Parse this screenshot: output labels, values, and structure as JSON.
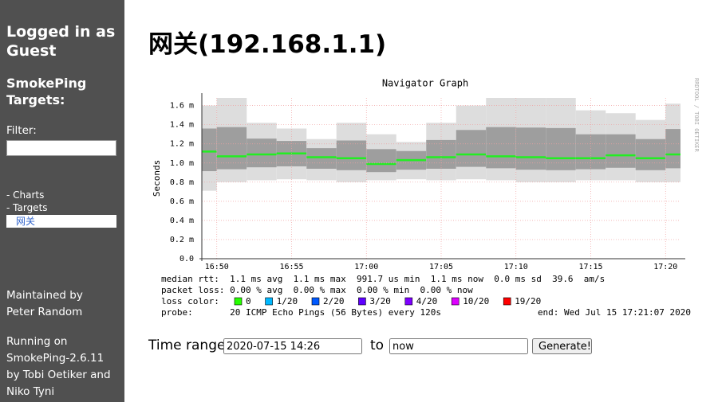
{
  "sidebar": {
    "login": "Logged in as Guest",
    "targets_title": "SmokePing Targets:",
    "filter_label": "Filter:",
    "filter_value": "",
    "menu": [
      "- Charts",
      "- Targets",
      "网关"
    ],
    "maintained": "Maintained by",
    "maintainer": "Peter Random",
    "running": "Running on SmokePing-2.6.11 by Tobi Oetiker and Niko Tyni"
  },
  "header": {
    "title": "网关(192.168.1.1)"
  },
  "chart_data": {
    "type": "smoke",
    "title": "Navigator Graph",
    "y_label": "Seconds",
    "watermark": "RRDTOOL / TOBI OETIKER",
    "x": [
      "16:48",
      "16:50",
      "16:52",
      "16:54",
      "16:56",
      "16:58",
      "17:00",
      "17:02",
      "17:04",
      "17:06",
      "17:08",
      "17:10",
      "17:12",
      "17:14",
      "17:16",
      "17:18",
      "17:20"
    ],
    "xlim": [
      "16:49",
      "17:21"
    ],
    "xticks": [
      "16:50",
      "16:55",
      "17:00",
      "17:05",
      "17:10",
      "17:15",
      "17:20"
    ],
    "ylim": [
      0,
      1.68
    ],
    "yticks": [
      {
        "value": 0,
        "label": "0.0"
      },
      {
        "value": 0.2,
        "label": "0.2 m"
      },
      {
        "value": 0.4,
        "label": "0.4 m"
      },
      {
        "value": 0.6,
        "label": "0.6 m"
      },
      {
        "value": 0.8,
        "label": "0.8 m"
      },
      {
        "value": 1.0,
        "label": "1.0 m"
      },
      {
        "value": 1.2,
        "label": "1.2 m"
      },
      {
        "value": 1.4,
        "label": "1.4 m"
      },
      {
        "value": 1.6,
        "label": "1.6 m"
      }
    ],
    "grid": true,
    "median": {
      "color": "#22ee22",
      "values": [
        1.12,
        1.07,
        1.09,
        1.1,
        1.06,
        1.05,
        0.99,
        1.03,
        1.06,
        1.09,
        1.07,
        1.06,
        1.05,
        1.05,
        1.08,
        1.05,
        1.09
      ]
    },
    "smoke_min": {
      "color": "#dddddd",
      "values": [
        0.71,
        0.8,
        0.82,
        0.83,
        0.82,
        0.8,
        0.82,
        0.83,
        0.82,
        0.83,
        0.82,
        0.8,
        0.8,
        0.82,
        0.82,
        0.8,
        0.8
      ]
    },
    "smoke_max": {
      "color": "#888888",
      "values": [
        1.6,
        1.68,
        1.42,
        1.36,
        1.25,
        1.42,
        1.3,
        1.22,
        1.42,
        1.6,
        1.68,
        1.68,
        1.68,
        1.55,
        1.52,
        1.45,
        1.62
      ]
    },
    "stats": [
      "median rtt:  1.1 ms avg  1.1 ms max  991.7 us min  1.1 ms now  0.0 ms sd  39.6  am/s",
      "packet loss: 0.00 % avg  0.00 % max  0.00 % min  0.00 % now"
    ],
    "loss_label": "loss color:",
    "loss_colors": [
      {
        "name": "0",
        "color": "#26ff00"
      },
      {
        "name": "1/20",
        "color": "#00b8ff"
      },
      {
        "name": "2/20",
        "color": "#0059ff"
      },
      {
        "name": "3/20",
        "color": "#5e00ff"
      },
      {
        "name": "4/20",
        "color": "#7e00ff"
      },
      {
        "name": "10/20",
        "color": "#dd00ff"
      },
      {
        "name": "19/20",
        "color": "#ff0000"
      }
    ],
    "probe": "probe:       20 ICMP Echo Pings (56 Bytes) every 120s",
    "end": "end: Wed Jul 15 17:21:07 2020"
  },
  "form": {
    "label": "Time range:",
    "start": "2020-07-15 14:26",
    "to": "to",
    "end": "now",
    "button": "Generate!"
  }
}
